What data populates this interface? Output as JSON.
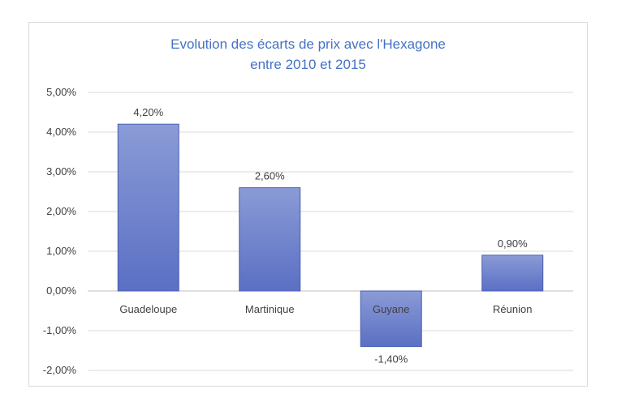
{
  "chart_data": {
    "type": "bar",
    "title_line1": "Evolution des écarts de prix avec l'Hexagone",
    "title_line2": "entre 2010 et 2015",
    "xlabel": "",
    "ylabel": "",
    "categories": [
      "Guadeloupe",
      "Martinique",
      "Guyane",
      "Réunion"
    ],
    "values": [
      4.2,
      2.6,
      -1.4,
      0.9
    ],
    "data_labels": [
      "4,20%",
      "2,60%",
      "-1,40%",
      "0,90%"
    ],
    "ylim": [
      -2,
      5
    ],
    "yticks": [
      5,
      4,
      3,
      2,
      1,
      0,
      -1,
      -2
    ],
    "ytick_labels": [
      "5,00%",
      "4,00%",
      "3,00%",
      "2,00%",
      "1,00%",
      "0,00%",
      "-1,00%",
      "-2,00%"
    ],
    "grid": true,
    "legend": "none",
    "bar_color_top": "#8a9bd6",
    "bar_color_bottom": "#5b6fc4",
    "bar_stroke": "#4a5fb0"
  }
}
